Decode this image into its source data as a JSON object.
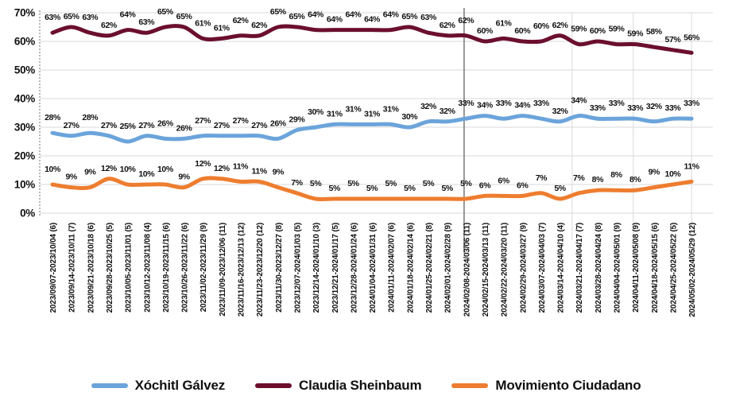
{
  "chart_data": {
    "type": "line",
    "title": "",
    "xlabel": "",
    "ylabel": "",
    "grid": {
      "horizontal": true,
      "vertical_line_indices": [
        27.65,
        30.9,
        34.0
      ]
    },
    "y_axis": {
      "min": 0,
      "max": 70,
      "tick_step": 10,
      "tick_labels": [
        "0%",
        "10%",
        "20%",
        "30%",
        "40%",
        "50%",
        "60%",
        "70%"
      ]
    },
    "categories": [
      "2023/09/07-2023/10/04 (6)",
      "2023/09/14-2023/10/11 (7)",
      "2023/09/21-2023/10/18 (6)",
      "2023/09/28-2023/10/25 (5)",
      "2023/10/05-2023/11/01 (5)",
      "2023/10/12-2023/11/08 (4)",
      "2023/10/19-2023/11/15 (6)",
      "2023/10/26-2023/11/22 (6)",
      "2023/11/02-2023/11/29 (9)",
      "2023/11/09-2023/12/06 (11)",
      "2023/11/16-2023/12/13 (12)",
      "2023/11/23-2023/12/20 (12)",
      "2023/11/30-2023/12/27 (8)",
      "2023/12/07-2024/01/03 (5)",
      "2023/12/14-2024/01/10 (3)",
      "2023/12/21-2024/01/17 (5)",
      "2023/12/28-2024/01/24 (6)",
      "2024/01/04-2024/01/31 (6)",
      "2024/01/11-2024/02/07 (6)",
      "2024/01/18-2024/02/14 (6)",
      "2024/01/25-2024/02/21 (8)",
      "2024/02/01-2024/02/28 (9)",
      "2024/02/08-2024/03/06 (11)",
      "2024/02/15-2024/03/13 (11)",
      "2024/02/22-2024/03/20 (11)",
      "2024/02/29-2024/03/27 (9)",
      "2024/03/07-2024/04/03 (7)",
      "2024/03/14-2024/04/10 (4)",
      "2024/03/21-2024/04/17 (7)",
      "2024/03/28-2024/04/24 (8)",
      "2024/04/04-2024/05/01 (9)",
      "2024/04/11-2024/05/08 (9)",
      "2024/04/18-2024/05/15 (6)",
      "2024/04/25-2024/05/22 (5)",
      "2024/05/02-2024/05/29 (12)"
    ],
    "series": [
      {
        "name": "Xóchitl Gálvez",
        "color": "#6BA4DB",
        "values": [
          28,
          27,
          28,
          27,
          25,
          27,
          26,
          26,
          27,
          27,
          27,
          27,
          26,
          29,
          30,
          31,
          31,
          31,
          31,
          30,
          32,
          32,
          33,
          34,
          33,
          34,
          33,
          32,
          34,
          33,
          33,
          33,
          32,
          33,
          33
        ]
      },
      {
        "name": "Claudia Sheinbaum",
        "color": "#6B0F2D",
        "values": [
          63,
          65,
          63,
          62,
          64,
          63,
          65,
          65,
          61,
          61,
          62,
          62,
          65,
          65,
          64,
          64,
          64,
          64,
          64,
          65,
          63,
          62,
          62,
          60,
          61,
          60,
          60,
          62,
          59,
          60,
          59,
          59,
          58,
          57,
          56
        ]
      },
      {
        "name": "Movimiento Ciudadano",
        "color": "#EE7D2F",
        "values": [
          10,
          9,
          9,
          12,
          10,
          10,
          10,
          9,
          12,
          12,
          11,
          11,
          9,
          7,
          5,
          5,
          5,
          5,
          5,
          5,
          5,
          5,
          5,
          6,
          6,
          6,
          7,
          5,
          7,
          8,
          8,
          8,
          9,
          10,
          11
        ]
      }
    ],
    "data_labels": true,
    "annotation": {
      "type": "vertical-line",
      "between_categories": [
        "2024/02/01-2024/02/28 (9)",
        "2024/02/08-2024/03/06 (11)"
      ],
      "position_index": 21.9,
      "color": "#808080"
    },
    "legend": {
      "position": "bottom",
      "entries": [
        "Xóchitl Gálvez",
        "Claudia Sheinbaum",
        "Movimiento Ciudadano"
      ]
    },
    "colors": {
      "gridline": "#D9D9D9",
      "axis_dotted": "#A6A6A6",
      "label_text": "#111111"
    }
  }
}
